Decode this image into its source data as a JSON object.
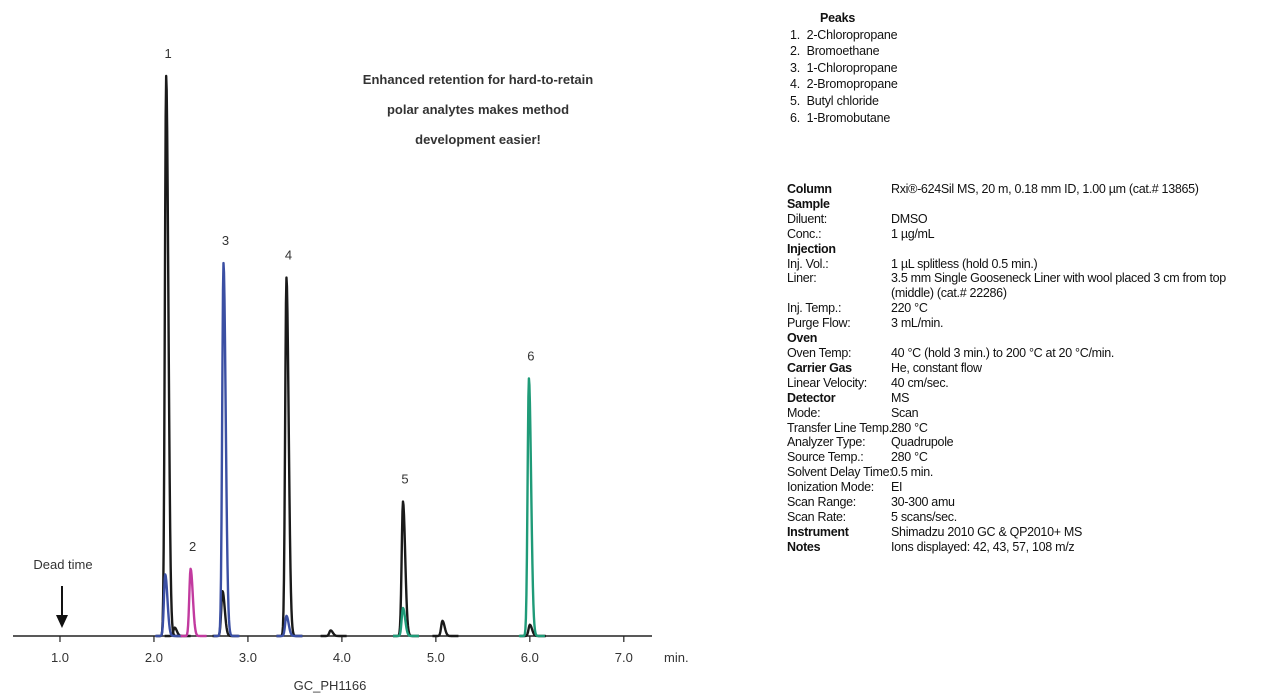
{
  "chart_data": {
    "type": "chromatogram",
    "callout": [
      "Enhanced retention for hard-to-retain",
      "polar analytes makes method",
      "development easier!"
    ],
    "xlabel": "min.",
    "footer": "GC_PH1166",
    "dead_time": {
      "label": "Dead time",
      "x": 1.0
    },
    "xlim": [
      0.5,
      7.3
    ],
    "ylim": [
      0,
      100
    ],
    "xticks": [
      {
        "value": 1,
        "label": "1.0"
      },
      {
        "value": 2,
        "label": "2.0"
      },
      {
        "value": 3,
        "label": "3.0"
      },
      {
        "value": 4,
        "label": "4.0"
      },
      {
        "value": 5,
        "label": "5.0"
      },
      {
        "value": 6,
        "label": "6.0"
      },
      {
        "value": 7,
        "label": "7.0"
      }
    ],
    "series": [
      {
        "color": "#1a1a1a",
        "peaks": [
          {
            "x": 2.13,
            "y": 100,
            "label": "1"
          },
          {
            "x": 2.22,
            "y": 1.5
          },
          {
            "x": 2.73,
            "y": 8
          },
          {
            "x": 3.41,
            "y": 64,
            "label": "4"
          },
          {
            "x": 3.88,
            "y": 1
          },
          {
            "x": 4.65,
            "y": 24,
            "label": "5"
          },
          {
            "x": 5.07,
            "y": 2.7
          },
          {
            "x": 6.0,
            "y": 2
          }
        ]
      },
      {
        "color": "#3b4fa3",
        "peaks": [
          {
            "x": 2.12,
            "y": 11
          },
          {
            "x": 2.74,
            "y": 66.6,
            "label": "3"
          },
          {
            "x": 3.41,
            "y": 3.6
          }
        ]
      },
      {
        "color": "#c23a9f",
        "peaks": [
          {
            "x": 2.39,
            "y": 12,
            "label": "2"
          }
        ]
      },
      {
        "color": "#1f9b78",
        "peaks": [
          {
            "x": 4.65,
            "y": 5
          },
          {
            "x": 5.99,
            "y": 46,
            "label": "6"
          }
        ]
      }
    ]
  },
  "peaks_list": {
    "title": "Peaks",
    "items": [
      "1.  2-Chloropropane",
      "2.  Bromoethane",
      "3.  1-Chloropropane",
      "4.  2-Bromopropane",
      "5.  Butyl chloride",
      "6.  1-Bromobutane"
    ]
  },
  "conditions": [
    {
      "key": "Column",
      "value": "Rxi®-624Sil MS, 20 m, 0.18 mm ID, 1.00 µm (cat.# 13865)",
      "bold": true
    },
    {
      "key": "Sample",
      "bold": true
    },
    {
      "key": "Diluent:",
      "value": "DMSO"
    },
    {
      "key": "Conc.:",
      "value": "1 µg/mL"
    },
    {
      "key": "Injection",
      "bold": true
    },
    {
      "key": "Inj. Vol.:",
      "value": "1 µL splitless (hold 0.5 min.)"
    },
    {
      "key": "Liner:",
      "value": "3.5 mm Single Gooseneck Liner with wool placed 3 cm from top (middle) (cat.# 22286)"
    },
    {
      "key": "Inj. Temp.:",
      "value": "220 °C"
    },
    {
      "key": "Purge Flow:",
      "value": "3 mL/min."
    },
    {
      "key": "Oven",
      "bold": true
    },
    {
      "key": "Oven Temp:",
      "value": "40 °C (hold 3 min.) to 200 °C at 20 °C/min."
    },
    {
      "key": "Carrier Gas",
      "value": "He, constant flow",
      "bold": true
    },
    {
      "key": "Linear Velocity:",
      "value": "40 cm/sec."
    },
    {
      "key": "Detector",
      "value": "MS",
      "bold": true
    },
    {
      "key": "Mode:",
      "value": "Scan"
    },
    {
      "key": "Transfer Line Temp.:",
      "value": "280 °C"
    },
    {
      "key": "Analyzer Type:",
      "value": "Quadrupole"
    },
    {
      "key": "Source Temp.:",
      "value": "280 °C"
    },
    {
      "key": "Solvent Delay Time:",
      "value": "0.5 min."
    },
    {
      "key": "Ionization Mode:",
      "value": "EI"
    },
    {
      "key": "Scan Range:",
      "value": "30-300 amu"
    },
    {
      "key": "Scan Rate:",
      "value": "5 scans/sec."
    },
    {
      "key": "Instrument",
      "value": "Shimadzu 2010 GC & QP2010+ MS",
      "bold": true
    },
    {
      "key": "Notes",
      "value": "Ions displayed: 42, 43, 57, 108 m/z",
      "bold": true
    }
  ]
}
